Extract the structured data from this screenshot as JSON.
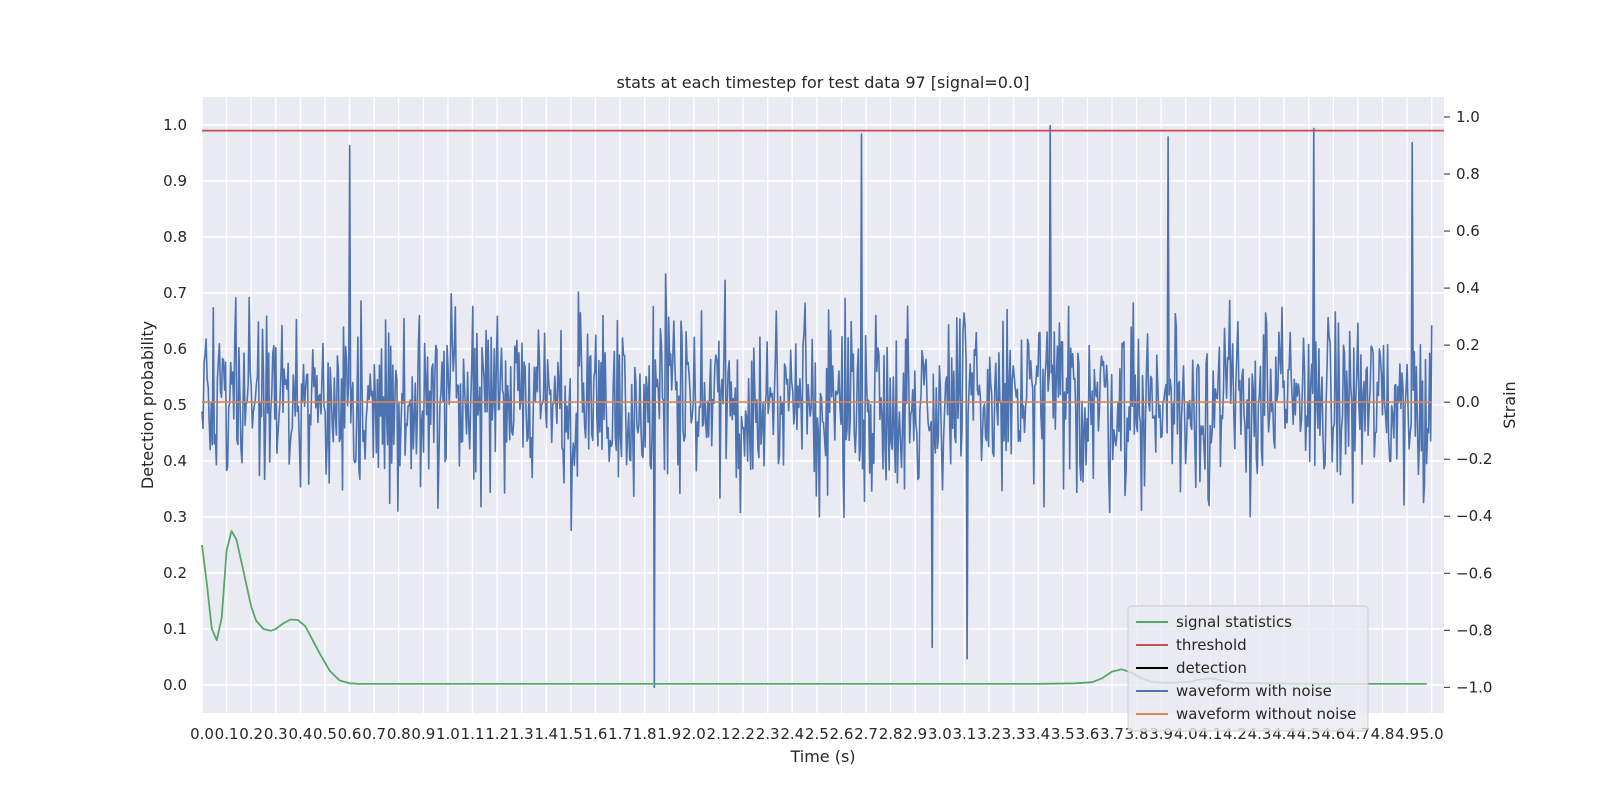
{
  "chart_data": {
    "type": "line",
    "title": "stats at each timestep for test data 97 [signal=0.0]",
    "xlabel": "Time (s)",
    "ylabel_left": "Detection probability",
    "ylabel_right": "Strain",
    "xlim": [
      0.0,
      5.0
    ],
    "ylim_left": [
      -0.05,
      1.05
    ],
    "ylim_right": [
      -1.09,
      1.07
    ],
    "x_ticks": [
      "0.0",
      "0.1",
      "0.2",
      "0.3",
      "0.4",
      "0.5",
      "0.6",
      "0.7",
      "0.8",
      "0.9",
      "1.0",
      "1.1",
      "1.2",
      "1.3",
      "1.4",
      "1.5",
      "1.6",
      "1.7",
      "1.8",
      "1.9",
      "2.0",
      "2.1",
      "2.2",
      "2.3",
      "2.4",
      "2.5",
      "2.6",
      "2.7",
      "2.8",
      "2.9",
      "3.0",
      "3.1",
      "3.2",
      "3.3",
      "3.4",
      "3.5",
      "3.6",
      "3.7",
      "3.8",
      "3.9",
      "4.0",
      "4.1",
      "4.2",
      "4.3",
      "4.4",
      "4.5",
      "4.6",
      "4.7",
      "4.8",
      "4.9",
      "5.0"
    ],
    "y_ticks_left": [
      "0.0",
      "0.1",
      "0.2",
      "0.3",
      "0.4",
      "0.5",
      "0.6",
      "0.7",
      "0.8",
      "0.9",
      "1.0"
    ],
    "y_ticks_right": [
      "−1.0",
      "−0.8",
      "−0.6",
      "−0.4",
      "−0.2",
      "0.0",
      "0.2",
      "0.4",
      "0.6",
      "0.8",
      "1.0"
    ],
    "grid": true,
    "legend_position": "lower-right",
    "series": [
      {
        "name": "signal statistics",
        "axis": "left",
        "color": "#55a868",
        "x": [
          0.0,
          0.02,
          0.04,
          0.06,
          0.08,
          0.1,
          0.12,
          0.14,
          0.16,
          0.18,
          0.2,
          0.22,
          0.25,
          0.28,
          0.3,
          0.33,
          0.36,
          0.39,
          0.42,
          0.45,
          0.48,
          0.52,
          0.56,
          0.6,
          0.64,
          0.68,
          0.75,
          1.0,
          2.0,
          3.0,
          3.4,
          3.55,
          3.62,
          3.66,
          3.7,
          3.74,
          3.78,
          3.82,
          3.86,
          3.9,
          3.94,
          3.98,
          4.02,
          4.06,
          4.1,
          4.2,
          4.5,
          4.98
        ],
        "y": [
          0.25,
          0.18,
          0.1,
          0.08,
          0.12,
          0.24,
          0.275,
          0.26,
          0.22,
          0.18,
          0.14,
          0.115,
          0.1,
          0.097,
          0.1,
          0.11,
          0.117,
          0.116,
          0.105,
          0.08,
          0.055,
          0.025,
          0.008,
          0.003,
          0.002,
          0.002,
          0.002,
          0.002,
          0.002,
          0.002,
          0.002,
          0.003,
          0.005,
          0.012,
          0.024,
          0.028,
          0.022,
          0.012,
          0.006,
          0.004,
          0.004,
          0.005,
          0.006,
          0.01,
          0.012,
          0.004,
          0.002,
          0.002
        ]
      },
      {
        "name": "threshold",
        "axis": "left",
        "color": "#c44e52",
        "x": [
          0.0,
          5.05
        ],
        "y": [
          0.99,
          0.99
        ]
      },
      {
        "name": "detection",
        "axis": "left",
        "color": "#000000",
        "x": [],
        "y": []
      },
      {
        "name": "waveform with noise",
        "axis": "right",
        "color": "#4c72b0",
        "sample_count": 1200,
        "amplitude_typical": 0.45,
        "extremes_x": [
          0.6,
          1.84,
          2.68,
          3.45,
          3.93,
          4.52,
          4.92,
          2.97,
          3.11
        ],
        "extremes_y": [
          0.9,
          -1.0,
          0.94,
          0.97,
          0.93,
          0.96,
          0.91,
          -0.86,
          -0.9
        ]
      },
      {
        "name": "waveform without noise",
        "axis": "right",
        "color": "#dd8452",
        "x": [
          0.0,
          5.0
        ],
        "y": [
          0.0,
          0.0
        ]
      }
    ]
  }
}
